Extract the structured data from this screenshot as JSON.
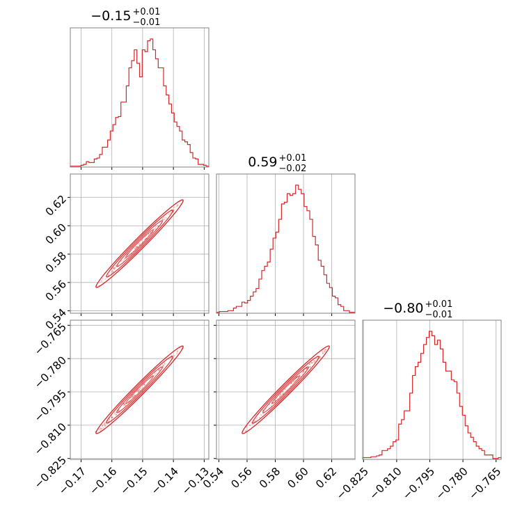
{
  "chart_data": {
    "type": "corner",
    "colors": {
      "line": "#d62728",
      "grid": "#b0b0b0",
      "frame": "#808080"
    },
    "parameters": [
      {
        "range": [
          -0.1735,
          -0.1285
        ],
        "ticks": [
          -0.17,
          -0.16,
          -0.15,
          -0.14,
          -0.13
        ],
        "tick_labels": [
          "−0.17",
          "−0.16",
          "−0.15",
          "−0.14",
          "−0.13"
        ],
        "title": {
          "value": "−0.15",
          "upper": "+0.01",
          "lower": "−0.01"
        }
      },
      {
        "range": [
          0.5383,
          0.6365
        ],
        "ticks": [
          0.54,
          0.56,
          0.58,
          0.6,
          0.62
        ],
        "tick_labels": [
          "0.54",
          "0.56",
          "0.58",
          "0.60",
          "0.62"
        ],
        "title": {
          "value": "0.59",
          "upper": "+0.01",
          "lower": "−0.02"
        }
      },
      {
        "range": [
          -0.8254,
          -0.7627
        ],
        "ticks": [
          -0.825,
          -0.81,
          -0.795,
          -0.78,
          -0.765
        ],
        "tick_labels": [
          "−0.825",
          "−0.810",
          "−0.795",
          "−0.780",
          "−0.765"
        ],
        "title": {
          "value": "−0.80",
          "upper": "+0.01",
          "lower": "−0.01"
        }
      }
    ],
    "histograms": [
      {
        "param": 0,
        "counts": [
          1,
          1,
          1,
          1,
          2,
          3,
          6,
          5,
          5,
          9,
          10,
          14,
          22,
          22,
          30,
          40,
          47,
          55,
          56,
          72,
          72,
          90,
          110,
          118,
          130,
          115,
          100,
          130,
          128,
          140,
          142,
          130,
          120,
          110,
          110,
          90,
          80,
          70,
          60,
          50,
          45,
          40,
          30,
          28,
          25,
          16,
          10,
          9,
          3,
          3,
          2,
          1
        ]
      },
      {
        "param": 1,
        "counts": [
          1,
          2,
          2,
          2,
          3,
          3,
          6,
          8,
          8,
          13,
          12,
          15,
          20,
          25,
          29,
          40,
          50,
          55,
          60,
          75,
          88,
          95,
          110,
          128,
          130,
          140,
          138,
          140,
          150,
          145,
          140,
          125,
          120,
          110,
          90,
          80,
          62,
          55,
          45,
          35,
          30,
          20,
          18,
          10,
          8,
          3,
          3,
          1,
          1
        ]
      },
      {
        "param": 2,
        "counts": [
          2,
          2,
          2,
          3,
          3,
          4,
          5,
          10,
          10,
          12,
          15,
          20,
          22,
          40,
          45,
          55,
          55,
          75,
          95,
          105,
          110,
          120,
          130,
          138,
          145,
          140,
          130,
          135,
          125,
          110,
          100,
          100,
          90,
          88,
          75,
          60,
          50,
          38,
          30,
          25,
          20,
          15,
          12,
          10,
          5,
          5,
          5,
          1,
          1,
          2
        ]
      }
    ],
    "correlations": [
      {
        "x_param": 0,
        "y_param": 1,
        "rho": 0.985
      },
      {
        "x_param": 0,
        "y_param": 2,
        "rho": 0.985
      },
      {
        "x_param": 1,
        "y_param": 2,
        "rho": 0.985
      }
    ]
  }
}
